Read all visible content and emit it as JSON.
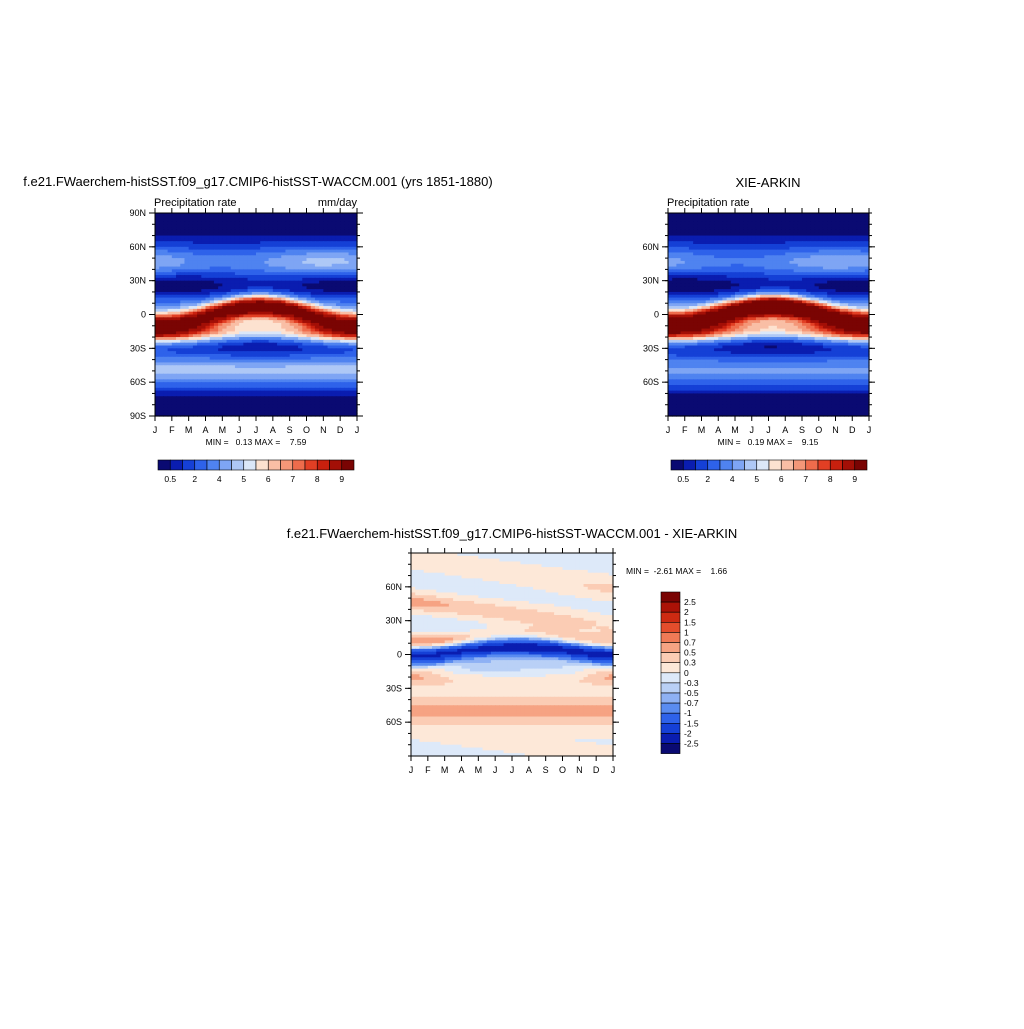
{
  "palette": {
    "precip": [
      "#0a0a72",
      "#0a1db0",
      "#1540d6",
      "#2e62ea",
      "#4f83f0",
      "#7ea5f4",
      "#aec8f6",
      "#dbe7f8",
      "#fde2d0",
      "#f9bea5",
      "#f49778",
      "#ee6c4c",
      "#e23f24",
      "#c8200e",
      "#a30f06",
      "#7a0403"
    ],
    "diff": [
      "#0a0a72",
      "#0a1db0",
      "#1540d6",
      "#2e62ea",
      "#5a8cf0",
      "#8eb1f4",
      "#b9d0f6",
      "#dde9f9",
      "#fde8d8",
      "#fbccb4",
      "#f6a383",
      "#f07a56",
      "#e44d2c",
      "#cd2a12",
      "#ab1207",
      "#7a0403"
    ]
  },
  "chart_data": [
    {
      "type": "heatmap",
      "title": "f.e21.FWaerchem-histSST.f09_g17.CMIP6-histSST-WACCM.001 (yrs 1851-1880)",
      "left_label": "Precipitation rate",
      "right_label": "mm/day",
      "stats_text": "MIN =   0.13 MAX =    7.59",
      "x_tick_labels": [
        "J",
        "F",
        "M",
        "A",
        "M",
        "J",
        "J",
        "A",
        "S",
        "O",
        "N",
        "D",
        "J"
      ],
      "y_tick_labels": [
        "90N",
        "60N",
        "30N",
        "0",
        "30S",
        "60S",
        "90S"
      ],
      "y_tick_values": [
        90,
        60,
        30,
        0,
        -30,
        -60,
        -90
      ],
      "ylim": [
        -90,
        90
      ],
      "colorbar_labels": [
        "0.5",
        "2",
        "4",
        "5",
        "6",
        "7",
        "8",
        "9"
      ],
      "stats": {
        "min": 0.13,
        "max": 7.59
      },
      "itcz": {
        "lat_jan": -8,
        "lat_jul": 7,
        "peak_jan": 4.5,
        "peak_jul": 7.4
      },
      "spcz": {
        "lat": -16,
        "peak": 3.8
      }
    },
    {
      "type": "heatmap",
      "title": "XIE-ARKIN",
      "left_label": "Precipitation rate",
      "right_label": "",
      "stats_text": "MIN =   0.19 MAX =    9.15",
      "x_tick_labels": [
        "J",
        "F",
        "M",
        "A",
        "M",
        "J",
        "J",
        "A",
        "S",
        "O",
        "N",
        "D",
        "J"
      ],
      "y_tick_labels": [
        "60N",
        "30N",
        "0",
        "30S",
        "60S"
      ],
      "y_tick_values": [
        60,
        30,
        0,
        -30,
        -60
      ],
      "ylim": [
        -90,
        90
      ],
      "colorbar_labels": [
        "0.5",
        "2",
        "4",
        "5",
        "6",
        "7",
        "8",
        "9"
      ],
      "stats": {
        "min": 0.19,
        "max": 9.15
      },
      "itcz": {
        "lat_jan": -6,
        "lat_jul": 7,
        "peak_jan": 5.2,
        "peak_jul": 9.0
      },
      "spcz": {
        "lat": -15,
        "peak": 4.0
      }
    },
    {
      "type": "heatmap",
      "title": "f.e21.FWaerchem-histSST.f09_g17.CMIP6-histSST-WACCM.001 - XIE-ARKIN",
      "stats_text": "MIN =  -2.61 MAX =    1.66",
      "x_tick_labels": [
        "J",
        "F",
        "M",
        "A",
        "M",
        "J",
        "J",
        "A",
        "S",
        "O",
        "N",
        "D",
        "J"
      ],
      "y_tick_labels": [
        "60N",
        "30N",
        "0",
        "30S",
        "60S"
      ],
      "y_tick_values": [
        60,
        30,
        0,
        -30,
        -60
      ],
      "ylim": [
        -90,
        90
      ],
      "colorbar_labels": [
        "2.5",
        "2",
        "1.5",
        "1",
        "0.7",
        "0.5",
        "0.3",
        "0",
        "-0.3",
        "-0.5",
        "-0.7",
        "-1",
        "-1.5",
        "-2",
        "-2.5"
      ],
      "stats": {
        "min": -2.61,
        "max": 1.66
      }
    }
  ]
}
